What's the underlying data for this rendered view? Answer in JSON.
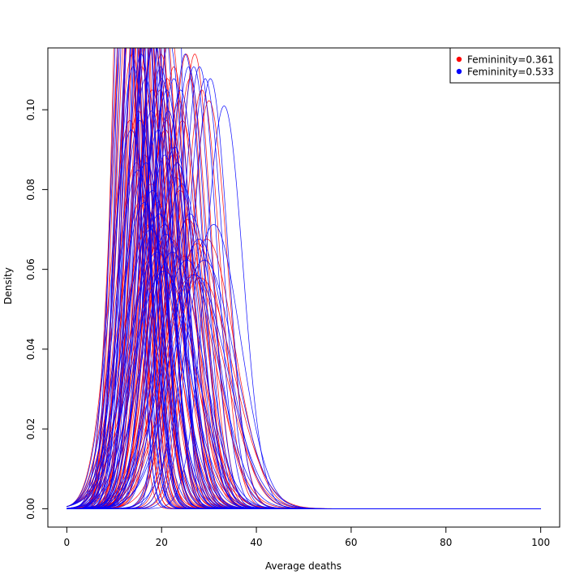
{
  "chart_data": {
    "type": "line",
    "title": "",
    "xlabel": "Average deaths",
    "ylabel": "Density",
    "xlim": [
      -4,
      104
    ],
    "ylim": [
      -0.0046,
      0.1155
    ],
    "x_ticks": [
      0,
      20,
      40,
      60,
      80,
      100
    ],
    "y_ticks": [
      0.0,
      0.02,
      0.04,
      0.06,
      0.08,
      0.1
    ],
    "x_tick_labels": [
      "0",
      "20",
      "40",
      "60",
      "80",
      "100"
    ],
    "y_tick_labels": [
      "0.00",
      "0.02",
      "0.04",
      "0.06",
      "0.08",
      "0.10"
    ],
    "x_range": [
      0,
      100
    ],
    "grid": false,
    "legend": {
      "position": "top-right",
      "entries": [
        {
          "label": "Femininity=0.361",
          "color": "#ff0000"
        },
        {
          "label": "Femininity=0.533",
          "color": "#0000ff"
        }
      ]
    },
    "series": [
      {
        "label": "Femininity=0.361",
        "color": "#ff0000",
        "curves_note_count": 60,
        "curves": [
          {
            "mean": 12.0,
            "sd": 2.3
          },
          {
            "mean": 12.6,
            "sd": 2.6
          },
          {
            "mean": 13.1,
            "sd": 2.4
          },
          {
            "mean": 13.5,
            "sd": 2.9
          },
          {
            "mean": 14.0,
            "sd": 3.1
          },
          {
            "mean": 14.4,
            "sd": 2.7
          },
          {
            "mean": 14.9,
            "sd": 3.3
          },
          {
            "mean": 15.3,
            "sd": 2.5
          },
          {
            "mean": 15.8,
            "sd": 3.6
          },
          {
            "mean": 16.2,
            "sd": 2.8
          },
          {
            "mean": 16.7,
            "sd": 3.0
          },
          {
            "mean": 17.1,
            "sd": 3.4
          },
          {
            "mean": 17.6,
            "sd": 2.6
          },
          {
            "mean": 18.0,
            "sd": 3.8
          },
          {
            "mean": 18.5,
            "sd": 3.2
          },
          {
            "mean": 19.0,
            "sd": 2.9
          },
          {
            "mean": 19.4,
            "sd": 4.0
          },
          {
            "mean": 19.9,
            "sd": 3.5
          },
          {
            "mean": 20.3,
            "sd": 3.1
          },
          {
            "mean": 20.8,
            "sd": 4.2
          },
          {
            "mean": 21.2,
            "sd": 3.7
          },
          {
            "mean": 21.7,
            "sd": 3.3
          },
          {
            "mean": 22.2,
            "sd": 4.4
          },
          {
            "mean": 22.6,
            "sd": 3.6
          },
          {
            "mean": 23.1,
            "sd": 4.8
          },
          {
            "mean": 23.7,
            "sd": 3.9
          },
          {
            "mean": 24.4,
            "sd": 4.1
          },
          {
            "mean": 25.2,
            "sd": 3.5
          },
          {
            "mean": 26.0,
            "sd": 3.7
          },
          {
            "mean": 27.0,
            "sd": 3.5
          },
          {
            "mean": 28.5,
            "sd": 3.8
          },
          {
            "mean": 30.0,
            "sd": 3.9
          },
          {
            "mean": 12.3,
            "sd": 3.0
          },
          {
            "mean": 13.8,
            "sd": 3.5
          },
          {
            "mean": 15.1,
            "sd": 4.0
          },
          {
            "mean": 16.4,
            "sd": 4.5
          },
          {
            "mean": 17.8,
            "sd": 4.9
          },
          {
            "mean": 19.2,
            "sd": 5.2
          },
          {
            "mean": 20.6,
            "sd": 5.6
          },
          {
            "mean": 22.0,
            "sd": 5.9
          },
          {
            "mean": 14.2,
            "sd": 2.4
          },
          {
            "mean": 15.6,
            "sd": 2.7
          },
          {
            "mean": 16.9,
            "sd": 3.1
          },
          {
            "mean": 18.3,
            "sd": 3.4
          },
          {
            "mean": 19.7,
            "sd": 3.8
          },
          {
            "mean": 21.0,
            "sd": 4.1
          },
          {
            "mean": 22.4,
            "sd": 4.5
          },
          {
            "mean": 23.9,
            "sd": 5.0
          },
          {
            "mean": 25.6,
            "sd": 5.5
          },
          {
            "mean": 27.5,
            "sd": 6.0
          },
          {
            "mean": 13.3,
            "sd": 4.1
          },
          {
            "mean": 14.7,
            "sd": 4.6
          },
          {
            "mean": 16.0,
            "sd": 5.1
          },
          {
            "mean": 17.4,
            "sd": 5.6
          },
          {
            "mean": 18.8,
            "sd": 6.1
          },
          {
            "mean": 20.1,
            "sd": 6.6
          },
          {
            "mean": 24.8,
            "sd": 6.3
          },
          {
            "mean": 26.5,
            "sd": 6.8
          },
          {
            "mean": 28.2,
            "sd": 6.9
          },
          {
            "mean": 29.5,
            "sd": 5.9
          }
        ]
      },
      {
        "label": "Femininity=0.533",
        "color": "#0000ff",
        "curves_note_count": 60,
        "curves": [
          {
            "mean": 12.2,
            "sd": 2.5
          },
          {
            "mean": 12.8,
            "sd": 2.2
          },
          {
            "mean": 13.3,
            "sd": 2.7
          },
          {
            "mean": 13.9,
            "sd": 3.0
          },
          {
            "mean": 14.3,
            "sd": 2.5
          },
          {
            "mean": 14.8,
            "sd": 3.2
          },
          {
            "mean": 15.2,
            "sd": 2.8
          },
          {
            "mean": 15.7,
            "sd": 3.5
          },
          {
            "mean": 16.1,
            "sd": 2.6
          },
          {
            "mean": 16.6,
            "sd": 3.7
          },
          {
            "mean": 17.0,
            "sd": 3.1
          },
          {
            "mean": 17.5,
            "sd": 2.9
          },
          {
            "mean": 17.9,
            "sd": 4.0
          },
          {
            "mean": 18.4,
            "sd": 3.4
          },
          {
            "mean": 18.9,
            "sd": 3.0
          },
          {
            "mean": 19.3,
            "sd": 4.2
          },
          {
            "mean": 19.8,
            "sd": 3.6
          },
          {
            "mean": 20.2,
            "sd": 3.2
          },
          {
            "mean": 20.7,
            "sd": 4.5
          },
          {
            "mean": 21.1,
            "sd": 3.8
          },
          {
            "mean": 21.6,
            "sd": 3.4
          },
          {
            "mean": 22.1,
            "sd": 2.0
          },
          {
            "mean": 22.6,
            "sd": 3.7
          },
          {
            "mean": 23.3,
            "sd": 4.6
          },
          {
            "mean": 24.0,
            "sd": 3.8
          },
          {
            "mean": 25.0,
            "sd": 3.5
          },
          {
            "mean": 25.7,
            "sd": 3.6
          },
          {
            "mean": 26.8,
            "sd": 3.6
          },
          {
            "mean": 28.0,
            "sd": 3.6
          },
          {
            "mean": 29.2,
            "sd": 3.7
          },
          {
            "mean": 30.3,
            "sd": 3.7
          },
          {
            "mean": 33.2,
            "sd": 3.95
          },
          {
            "mean": 12.5,
            "sd": 3.1
          },
          {
            "mean": 14.0,
            "sd": 3.6
          },
          {
            "mean": 15.4,
            "sd": 4.1
          },
          {
            "mean": 16.7,
            "sd": 4.6
          },
          {
            "mean": 18.1,
            "sd": 5.0
          },
          {
            "mean": 19.5,
            "sd": 5.4
          },
          {
            "mean": 20.9,
            "sd": 5.8
          },
          {
            "mean": 22.3,
            "sd": 6.2
          },
          {
            "mean": 14.5,
            "sd": 2.3
          },
          {
            "mean": 15.9,
            "sd": 2.6
          },
          {
            "mean": 17.2,
            "sd": 3.0
          },
          {
            "mean": 18.6,
            "sd": 3.3
          },
          {
            "mean": 20.0,
            "sd": 3.7
          },
          {
            "mean": 21.4,
            "sd": 4.0
          },
          {
            "mean": 22.8,
            "sd": 4.4
          },
          {
            "mean": 24.3,
            "sd": 4.9
          },
          {
            "mean": 26.0,
            "sd": 5.4
          },
          {
            "mean": 27.9,
            "sd": 5.9
          },
          {
            "mean": 13.6,
            "sd": 4.2
          },
          {
            "mean": 15.0,
            "sd": 4.7
          },
          {
            "mean": 16.3,
            "sd": 5.2
          },
          {
            "mean": 17.7,
            "sd": 5.7
          },
          {
            "mean": 19.1,
            "sd": 6.2
          },
          {
            "mean": 20.5,
            "sd": 6.7
          },
          {
            "mean": 25.3,
            "sd": 6.4
          },
          {
            "mean": 27.0,
            "sd": 6.8
          },
          {
            "mean": 29.0,
            "sd": 6.4
          },
          {
            "mean": 31.0,
            "sd": 5.6
          }
        ]
      }
    ]
  }
}
